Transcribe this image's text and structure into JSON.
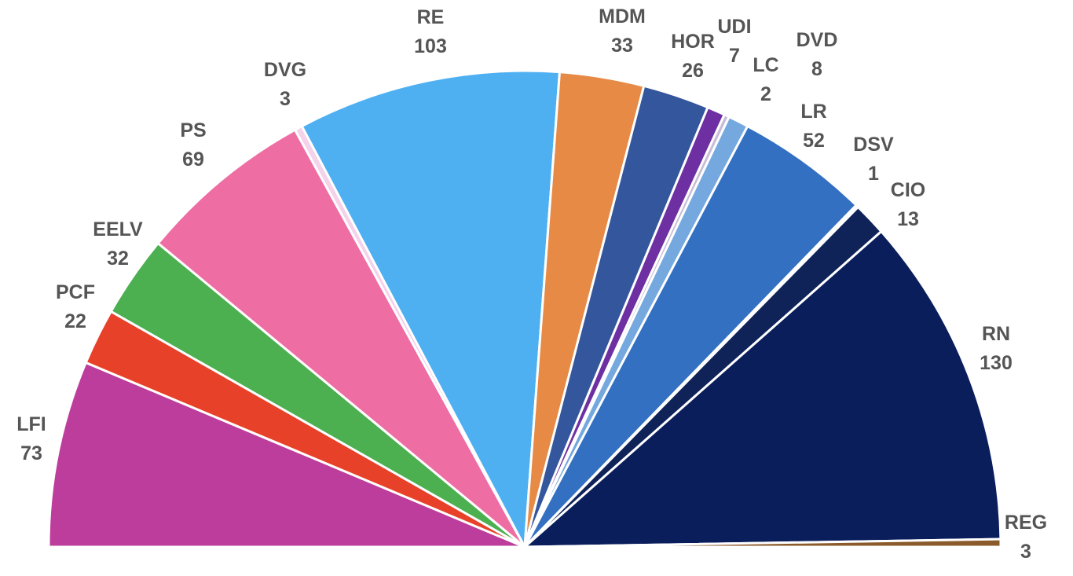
{
  "chart_data": {
    "type": "pie",
    "variant": "half-donut-hemicycle",
    "direction": "left-to-right",
    "title": "",
    "slices": [
      {
        "label": "LFI",
        "value": 73,
        "color": "#bd3d9c"
      },
      {
        "label": "PCF",
        "value": 22,
        "color": "#e8412a"
      },
      {
        "label": "EELV",
        "value": 32,
        "color": "#4caf50"
      },
      {
        "label": "PS",
        "value": 69,
        "color": "#ee6da3"
      },
      {
        "label": "DVG",
        "value": 3,
        "color": "#f3d2ea"
      },
      {
        "label": "RE",
        "value": 103,
        "color": "#4eb0f1"
      },
      {
        "label": "MDM",
        "value": 33,
        "color": "#e68a45"
      },
      {
        "label": "HOR",
        "value": 26,
        "color": "#34569c"
      },
      {
        "label": "UDI",
        "value": 7,
        "color": "#6e2fa3"
      },
      {
        "label": "LC",
        "value": 2,
        "color": "#c8bcd6"
      },
      {
        "label": "DVD",
        "value": 8,
        "color": "#74a8de"
      },
      {
        "label": "LR",
        "value": 52,
        "color": "#3370c2"
      },
      {
        "label": "DSV",
        "value": 1,
        "color": "#d7e2ee"
      },
      {
        "label": "CIO",
        "value": 13,
        "color": "#0f2358"
      },
      {
        "label": "RN",
        "value": 130,
        "color": "#0b1e5c"
      },
      {
        "label": "REG",
        "value": 3,
        "color": "#8b5a2b"
      }
    ]
  }
}
